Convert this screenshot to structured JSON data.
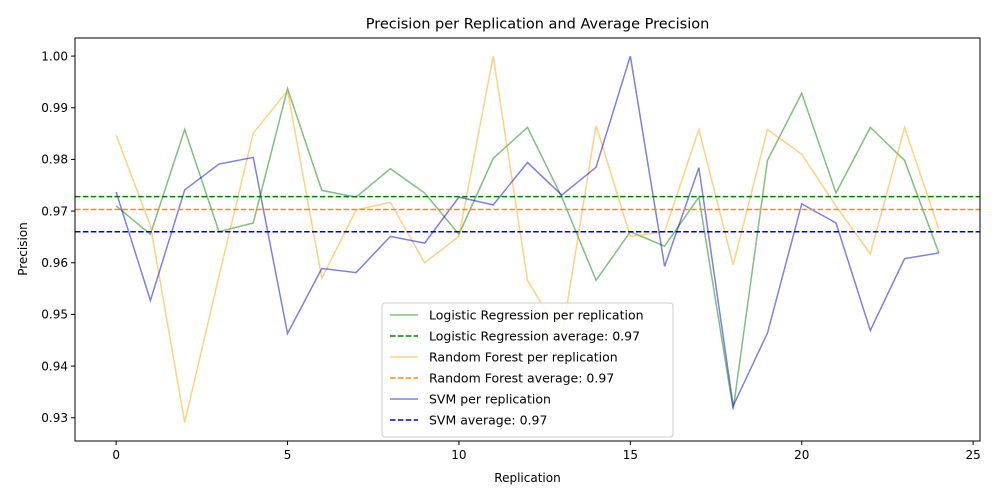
{
  "chart_data": {
    "type": "line",
    "title": "Precision per Replication and Average Precision",
    "xlabel": "Replication",
    "ylabel": "Precision",
    "xlim": [
      -1.2,
      25.2
    ],
    "ylim": [
      0.9255,
      1.0035
    ],
    "xticks": [
      0,
      5,
      10,
      15,
      20,
      25
    ],
    "yticks": [
      0.93,
      0.94,
      0.95,
      0.96,
      0.97,
      0.98,
      0.99,
      1.0
    ],
    "ytick_labels": [
      "0.93",
      "0.94",
      "0.95",
      "0.96",
      "0.97",
      "0.98",
      "0.99",
      "1.00"
    ],
    "grid": false,
    "legend_position": "lower-center",
    "x": [
      0,
      1,
      2,
      3,
      4,
      5,
      6,
      7,
      8,
      9,
      10,
      11,
      12,
      13,
      14,
      15,
      16,
      17,
      18,
      19,
      20,
      21,
      22,
      23,
      24
    ],
    "series": [
      {
        "name": "Logistic Regression per replication",
        "color": "#008000",
        "values": [
          0.971,
          0.9655,
          0.9858,
          0.966,
          0.9677,
          0.9937,
          0.974,
          0.9727,
          0.9782,
          0.9735,
          0.9655,
          0.9802,
          0.9862,
          0.9727,
          0.9566,
          0.966,
          0.9632,
          0.9727,
          0.9316,
          0.9798,
          0.9928,
          0.9735,
          0.9862,
          0.9798,
          0.9619
        ]
      },
      {
        "name": "Random Forest per replication",
        "color": "#ffa500",
        "values": [
          0.9847,
          0.9672,
          0.9291,
          0.9574,
          0.9851,
          0.9933,
          0.957,
          0.9702,
          0.9717,
          0.96,
          0.9651,
          1.0,
          0.9566,
          0.9455,
          0.9866,
          0.9651,
          0.966,
          0.9858,
          0.9596,
          0.9858,
          0.981,
          0.971,
          0.9617,
          0.9862,
          0.9665
        ]
      },
      {
        "name": "SVM per replication",
        "color": "#0000cd",
        "values": [
          0.9737,
          0.9527,
          0.9741,
          0.9791,
          0.9804,
          0.9463,
          0.9589,
          0.9581,
          0.9651,
          0.9638,
          0.9727,
          0.9712,
          0.9794,
          0.9731,
          0.9785,
          1.0,
          0.9593,
          0.9784,
          0.9323,
          0.9464,
          0.9714,
          0.9677,
          0.9469,
          0.9608,
          0.9619
        ]
      }
    ],
    "averages": [
      {
        "name": "Logistic Regression average: 0.97",
        "color": "#008000",
        "value": 0.9728
      },
      {
        "name": "Random Forest average: 0.97",
        "color": "#ff8c00",
        "value": 0.9703
      },
      {
        "name": "SVM average: 0.97",
        "color": "#0000cd",
        "value": 0.966
      }
    ]
  }
}
